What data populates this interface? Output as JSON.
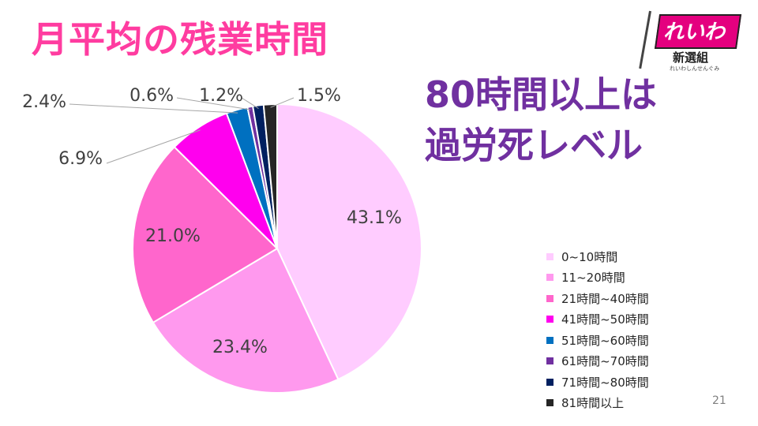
{
  "slide": {
    "title": "月平均の残業時間",
    "callout_line1": "80時間以上は",
    "callout_line2": "過労死レベル",
    "page_number": "21"
  },
  "logo": {
    "main": "れいわ",
    "sub": "新選組",
    "tiny": "れいわしんせんぐみ"
  },
  "colors": {
    "title": "#ff3ca0",
    "callout": "#7030a0"
  },
  "chart_data": {
    "type": "pie",
    "title": "",
    "categories": [
      "0~10時間",
      "11~20時間",
      "21時間~40時間",
      "41時間~50時間",
      "51時間~60時間",
      "61時間~70時間",
      "71時間~80時間",
      "81時間以上"
    ],
    "values": [
      43.1,
      23.4,
      21.0,
      6.9,
      2.4,
      0.6,
      1.2,
      1.5
    ],
    "labels": [
      "43.1%",
      "23.4%",
      "21.0%",
      "6.9%",
      "2.4%",
      "0.6%",
      "1.2%",
      "1.5%"
    ],
    "colors": [
      "#ffccff",
      "#ff99ee",
      "#ff66cc",
      "#ff00ee",
      "#0070c0",
      "#7030a0",
      "#002060",
      "#262626"
    ],
    "legend_position": "right"
  }
}
